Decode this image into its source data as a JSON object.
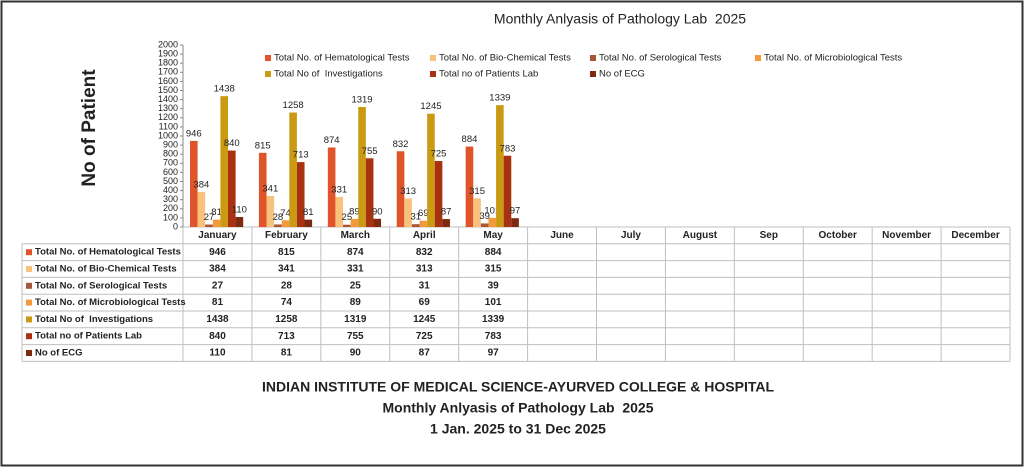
{
  "chart_data": {
    "type": "bar",
    "title": "Monthly Anlyasis of Pathology Lab  2025",
    "y_label": "No of Patient",
    "categories": [
      "January",
      "February",
      "March",
      "April",
      "May",
      "June",
      "July",
      "August",
      "Sep",
      "October",
      "November",
      "December"
    ],
    "series": [
      {
        "name": "Total No. of Hematological Tests",
        "color": "#e0542a",
        "values": [
          946,
          815,
          874,
          832,
          884,
          null,
          null,
          null,
          null,
          null,
          null,
          null
        ]
      },
      {
        "name": "Total No. of Bio-Chemical Tests",
        "color": "#f9c27c",
        "values": [
          384,
          341,
          331,
          313,
          315,
          null,
          null,
          null,
          null,
          null,
          null,
          null
        ]
      },
      {
        "name": "Total No. of Serological Tests",
        "color": "#a5573a",
        "values": [
          27,
          28,
          25,
          31,
          39,
          null,
          null,
          null,
          null,
          null,
          null,
          null
        ]
      },
      {
        "name": "Total No. of Microbiological Tests",
        "color": "#f29a3c",
        "values": [
          81,
          74,
          89,
          69,
          101,
          null,
          null,
          null,
          null,
          null,
          null,
          null
        ]
      },
      {
        "name": "Total No of  Investigations",
        "color": "#c99a12",
        "values": [
          1438,
          1258,
          1319,
          1245,
          1339,
          null,
          null,
          null,
          null,
          null,
          null,
          null
        ]
      },
      {
        "name": "Total no of Patients Lab",
        "color": "#a8320f",
        "values": [
          840,
          713,
          755,
          725,
          783,
          null,
          null,
          null,
          null,
          null,
          null,
          null
        ]
      },
      {
        "name": "No of ECG",
        "color": "#7e2a10",
        "values": [
          110,
          81,
          90,
          87,
          97,
          null,
          null,
          null,
          null,
          null,
          null,
          null
        ]
      }
    ],
    "ylim": [
      0,
      2000
    ],
    "yticks": [
      0,
      100,
      200,
      300,
      400,
      500,
      600,
      700,
      800,
      900,
      1000,
      1100,
      1200,
      1300,
      1400,
      1500,
      1600,
      1700,
      1800,
      1900,
      2000
    ],
    "legend": "top",
    "data_table": true
  },
  "footer": [
    "INDIAN INSTITUTE OF MEDICAL SCIENCE-AYURVED COLLEGE & HOSPITAL",
    "Monthly Anlyasis of Pathology Lab  2025",
    "1 Jan. 2025 to 31 Dec 2025"
  ]
}
